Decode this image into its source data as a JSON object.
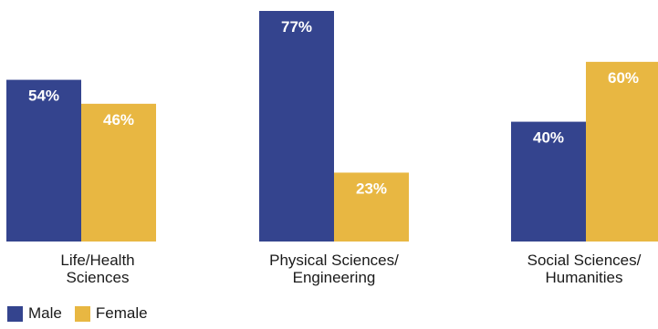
{
  "colors": {
    "male": "#34448e",
    "female": "#e8b742",
    "label_on_bar": "#ffffff"
  },
  "chart_data": {
    "type": "bar",
    "categories": [
      "Life/Health\nSciences",
      "Physical Sciences/\nEngineering",
      "Social Sciences/\nHumanities"
    ],
    "series": [
      {
        "name": "Male",
        "values": [
          54,
          77,
          40
        ],
        "labels": [
          "54%",
          "77%",
          "40%"
        ]
      },
      {
        "name": "Female",
        "values": [
          46,
          23,
          60
        ],
        "labels": [
          "46%",
          "23%",
          "60%"
        ]
      }
    ],
    "ylim": [
      0,
      100
    ],
    "grid": false,
    "legend_position": "bottom-left",
    "title": "",
    "xlabel": "",
    "ylabel": ""
  },
  "legend": {
    "male_label": "Male",
    "female_label": "Female"
  }
}
